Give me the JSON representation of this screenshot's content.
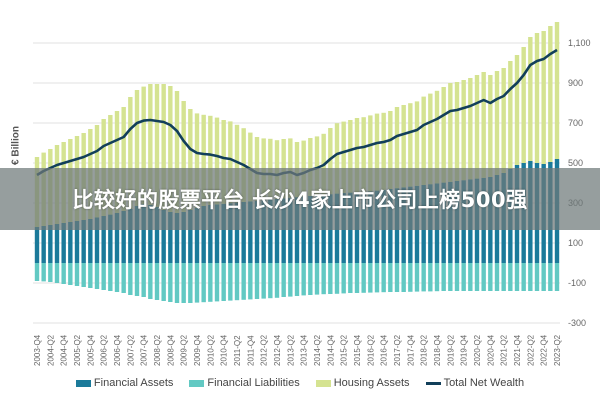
{
  "banner": {
    "text": "比较好的股票平台 长沙4家上市公司上榜500强"
  },
  "chart_data": {
    "type": "bar",
    "stacked": true,
    "ylabel": "€ Billion",
    "ylim": [
      -300,
      1200
    ],
    "yticks": [
      1100,
      900,
      700,
      500,
      300,
      100,
      -100,
      -300
    ],
    "ytick_labels": [
      "1,100",
      "900",
      "700",
      "500",
      "300",
      "100",
      "-100",
      "-300"
    ],
    "y_axis_side": "right",
    "grid": true,
    "legend_placement": "bottom",
    "x_tick_labels": [
      "2003-Q4",
      "2004-Q2",
      "2004-Q4",
      "2005-Q2",
      "2005-Q4",
      "2006-Q2",
      "2006-Q4",
      "2007-Q2",
      "2007-Q4",
      "2008-Q2",
      "2008-Q4",
      "2009-Q2",
      "2009-Q4",
      "2010-Q2",
      "2010-Q4",
      "2011-Q2",
      "2011-Q4",
      "2012-Q2",
      "2012-Q4",
      "2013-Q2",
      "2013-Q4",
      "2014-Q2",
      "2014-Q4",
      "2015-Q2",
      "2015-Q4",
      "2016-Q2",
      "2016-Q4",
      "2017-Q2",
      "2017-Q4",
      "2018-Q2",
      "2018-Q4",
      "2019-Q2",
      "2019-Q4",
      "2020-Q2",
      "2020-Q4",
      "2021-Q2",
      "2021-Q4",
      "2022-Q2",
      "2022-Q4",
      "2023-Q2"
    ],
    "x_start": "2003-Q4",
    "x_end": "2023-Q2",
    "x_frequency": "quarterly",
    "series": [
      {
        "name": "Financial Assets",
        "type": "bar",
        "color": "#1b7a9a",
        "values": [
          180,
          185,
          190,
          195,
          200,
          205,
          210,
          215,
          220,
          228,
          235,
          242,
          250,
          260,
          270,
          285,
          295,
          290,
          280,
          265,
          255,
          250,
          255,
          265,
          275,
          285,
          290,
          293,
          296,
          299,
          302,
          305,
          308,
          311,
          314,
          317,
          320,
          323,
          326,
          329,
          332,
          335,
          338,
          341,
          344,
          347,
          350,
          352,
          354,
          356,
          358,
          362,
          366,
          370,
          374,
          378,
          382,
          386,
          390,
          394,
          398,
          402,
          406,
          410,
          414,
          418,
          422,
          426,
          430,
          440,
          450,
          470,
          490,
          500,
          510,
          500,
          495,
          505,
          520
        ]
      },
      {
        "name": "Financial Liabilities",
        "type": "bar",
        "color": "#62c9c3",
        "values": [
          -90,
          -92,
          -95,
          -100,
          -105,
          -110,
          -115,
          -120,
          -125,
          -130,
          -135,
          -140,
          -145,
          -150,
          -160,
          -165,
          -170,
          -180,
          -185,
          -190,
          -195,
          -200,
          -200,
          -200,
          -198,
          -196,
          -194,
          -192,
          -190,
          -188,
          -186,
          -184,
          -182,
          -180,
          -178,
          -176,
          -174,
          -170,
          -168,
          -165,
          -162,
          -160,
          -158,
          -156,
          -155,
          -154,
          -152,
          -150,
          -150,
          -149,
          -148,
          -147,
          -146,
          -145,
          -145,
          -145,
          -144,
          -143,
          -142,
          -142,
          -141,
          -140,
          -140,
          -140,
          -140,
          -140,
          -140,
          -140,
          -140,
          -140,
          -140,
          -140,
          -140,
          -140,
          -140,
          -140,
          -140,
          -140,
          -140
        ]
      },
      {
        "name": "Housing Assets",
        "type": "bar",
        "color": "#d5e391",
        "values": [
          350,
          367,
          380,
          395,
          405,
          415,
          425,
          435,
          450,
          462,
          485,
          498,
          510,
          520,
          560,
          580,
          587,
          605,
          615,
          630,
          630,
          610,
          555,
          505,
          473,
          456,
          446,
          434,
          419,
          409,
          389,
          369,
          344,
          319,
          309,
          304,
          294,
          297,
          297,
          276,
          280,
          290,
          295,
          305,
          331,
          352,
          357,
          363,
          371,
          373,
          380,
          385,
          385,
          390,
          406,
          412,
          417,
          422,
          442,
          453,
          463,
          478,
          494,
          495,
          501,
          507,
          518,
          529,
          510,
          520,
          525,
          540,
          550,
          580,
          620,
          650,
          665,
          680,
          685
        ]
      },
      {
        "name": "Total Net Wealth",
        "type": "line",
        "color": "#123f5a",
        "values": [
          440,
          460,
          475,
          490,
          500,
          510,
          520,
          530,
          545,
          560,
          585,
          600,
          615,
          630,
          670,
          700,
          712,
          715,
          710,
          705,
          690,
          660,
          610,
          570,
          550,
          545,
          542,
          535,
          525,
          520,
          505,
          490,
          470,
          450,
          445,
          445,
          440,
          450,
          455,
          440,
          450,
          465,
          475,
          490,
          520,
          545,
          555,
          565,
          575,
          580,
          590,
          600,
          605,
          615,
          635,
          645,
          655,
          665,
          690,
          705,
          720,
          740,
          760,
          765,
          775,
          785,
          800,
          815,
          800,
          820,
          835,
          870,
          900,
          940,
          990,
          1010,
          1020,
          1045,
          1065
        ]
      }
    ]
  }
}
